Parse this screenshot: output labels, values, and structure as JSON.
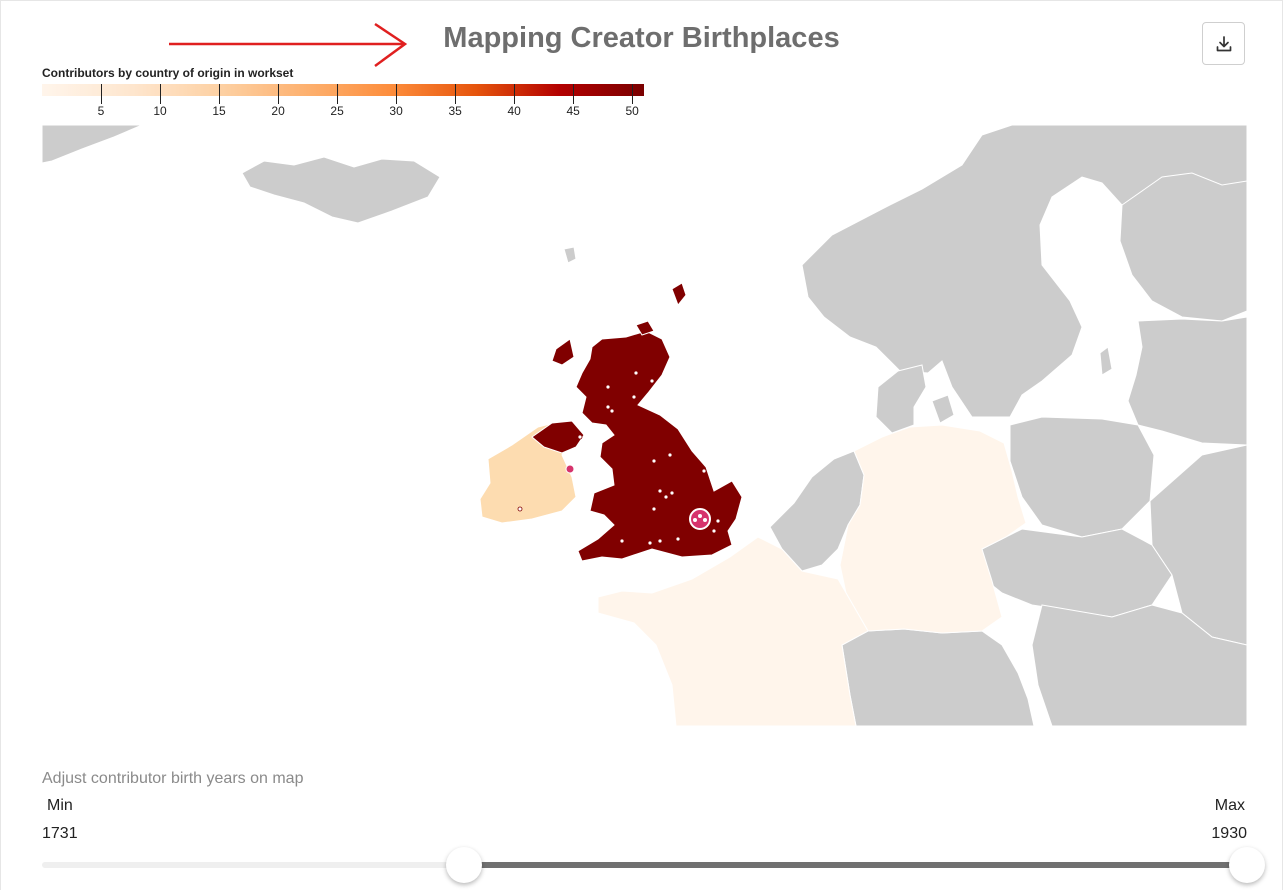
{
  "title": "Mapping Creator Birthplaces",
  "download_icon": "download-icon",
  "legend": {
    "title": "Contributors by country of origin in workset",
    "min": 0,
    "max": 51,
    "ticks": [
      "5",
      "10",
      "15",
      "20",
      "25",
      "30",
      "35",
      "40",
      "45",
      "50"
    ],
    "colors": [
      "#fff5eb",
      "#fdd0a2",
      "#fd8d3c",
      "#e6550d",
      "#b30000",
      "#7a0000"
    ]
  },
  "map": {
    "highlighted_countries": [
      {
        "name": "United Kingdom",
        "color": "#800000"
      },
      {
        "name": "Ireland",
        "color": "#fddcb0"
      },
      {
        "name": "France",
        "color": "#fff5eb"
      },
      {
        "name": "Germany",
        "color": "#fff5eb"
      }
    ],
    "other_countries_color": "#cccccc",
    "cluster_marker_color": "#d6336c",
    "birthplace_marker_color": "#ffffff"
  },
  "slider": {
    "caption": "Adjust contributor birth years on map",
    "min_label": "Min",
    "max_label": "Max",
    "min_value": "1731",
    "max_value": "1930",
    "range_start": 0.35,
    "range_end": 1.0
  }
}
